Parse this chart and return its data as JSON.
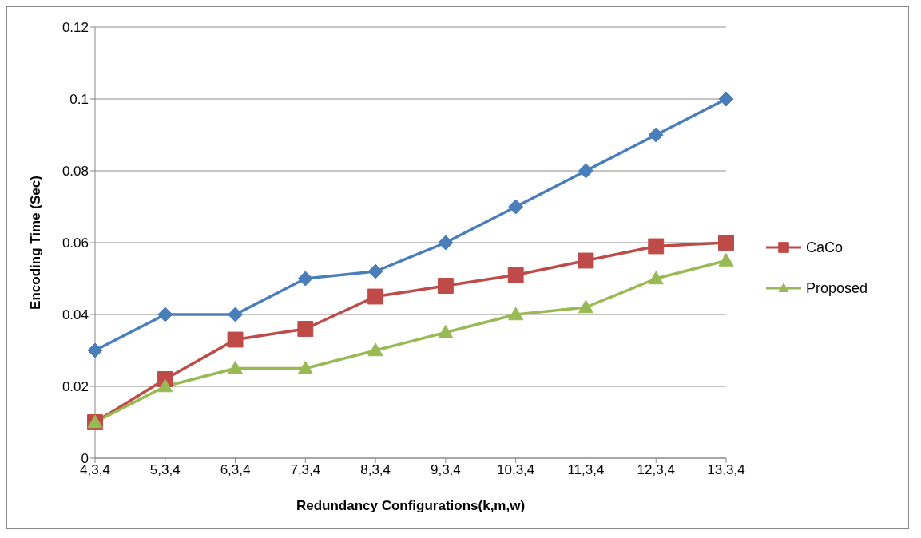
{
  "chart_data": {
    "type": "line",
    "xlabel": "Redundancy Configurations(k,m,w)",
    "ylabel": "Encoding Time (Sec)",
    "categories": [
      "4,3,4",
      "5,3,4",
      "6,3,4",
      "7,3,4",
      "8,3,4",
      "9,3,4",
      "10,3,4",
      "11,3,4",
      "12,3,4",
      "13,3,4"
    ],
    "series": [
      {
        "color": "#4a7ebb",
        "marker": "diamond",
        "values": [
          0.03,
          0.04,
          0.04,
          0.05,
          0.052,
          0.06,
          0.07,
          0.08,
          0.09,
          0.1
        ]
      },
      {
        "name": "CaCo",
        "color": "#be4b48",
        "marker": "square",
        "values": [
          0.01,
          0.022,
          0.033,
          0.036,
          0.045,
          0.048,
          0.051,
          0.055,
          0.059,
          0.06
        ]
      },
      {
        "name": "Proposed",
        "color": "#98b954",
        "marker": "triangle",
        "values": [
          0.01,
          0.02,
          0.025,
          0.025,
          0.03,
          0.035,
          0.04,
          0.042,
          0.05,
          0.055
        ]
      }
    ],
    "ylim": [
      0,
      0.12
    ],
    "yticks": [
      0,
      0.02,
      0.04,
      0.06,
      0.08,
      0.1,
      0.12
    ],
    "grid": "y",
    "legend": "right"
  }
}
